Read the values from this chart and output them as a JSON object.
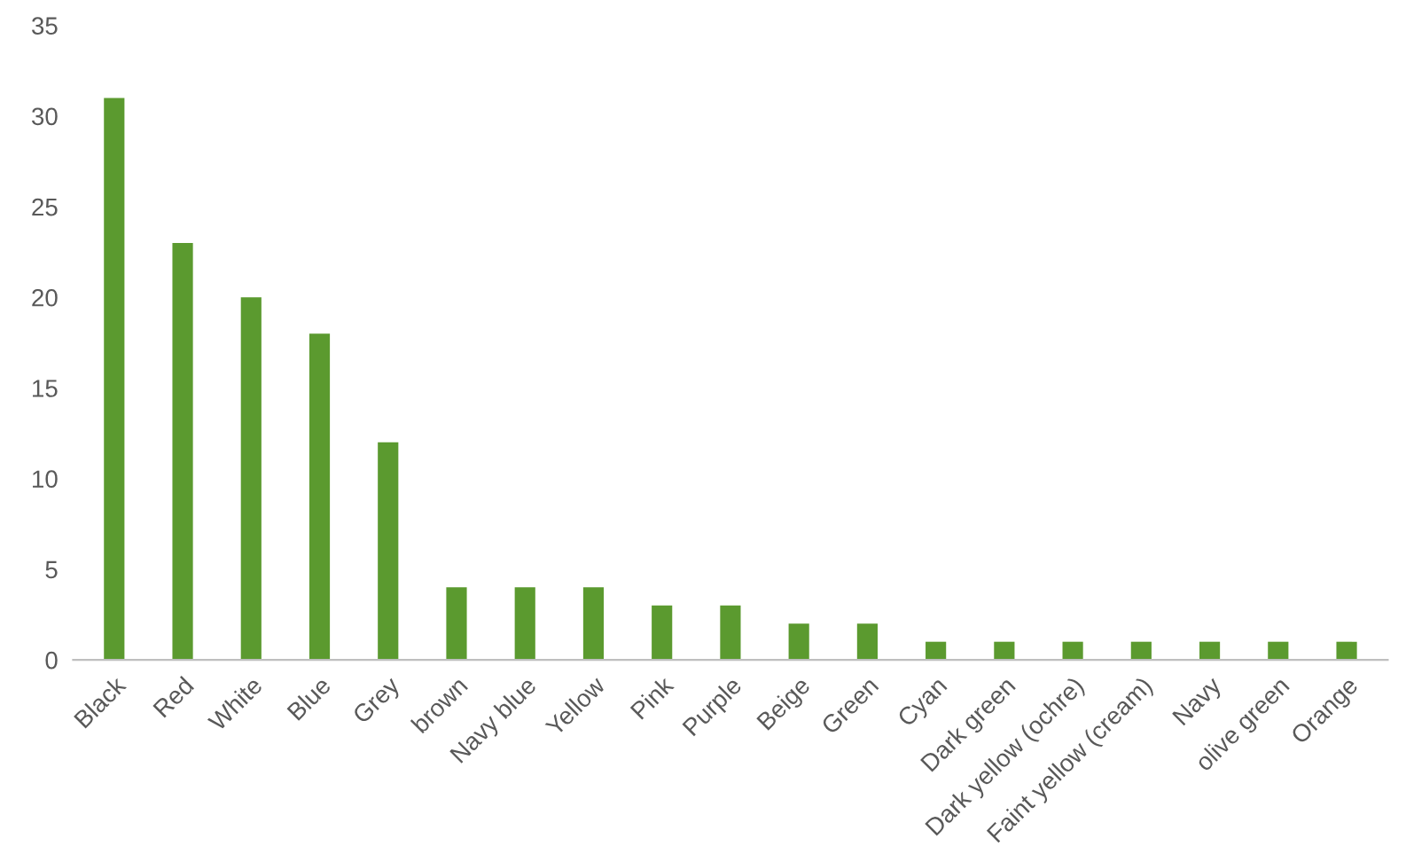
{
  "chart_data": {
    "type": "bar",
    "categories": [
      "Black",
      "Red",
      "White",
      "Blue",
      "Grey",
      "brown",
      "Navy blue",
      "Yellow",
      "Pink",
      "Purple",
      "Beige",
      "Green",
      "Cyan",
      "Dark green",
      "Dark yellow (ochre)",
      "Faint yellow (cream)",
      "Navy",
      "olive green",
      "Orange"
    ],
    "values": [
      31,
      23,
      20,
      18,
      12,
      4,
      4,
      4,
      3,
      3,
      2,
      2,
      1,
      1,
      1,
      1,
      1,
      1,
      1
    ],
    "color": "#5b9a2f",
    "ylim": [
      0,
      35
    ],
    "yticks": [
      0,
      5,
      10,
      15,
      20,
      25,
      30,
      35
    ],
    "grid": false,
    "legend": false
  }
}
